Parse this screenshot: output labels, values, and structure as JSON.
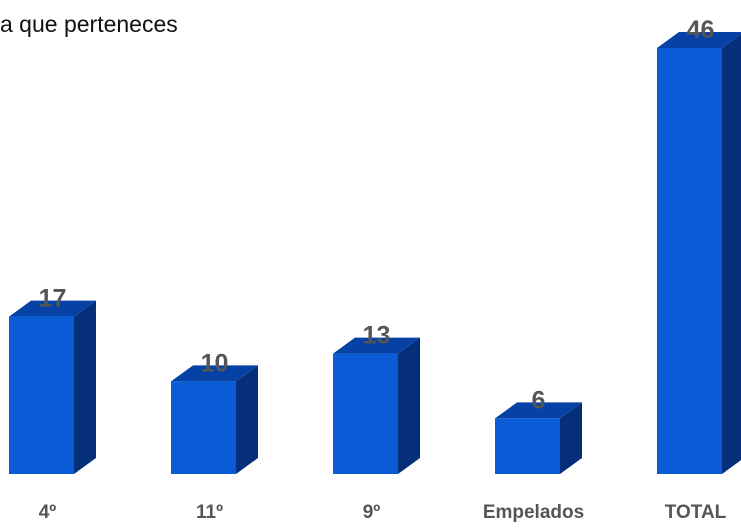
{
  "chart_data": {
    "type": "bar",
    "title_clipped": "¿A qué grupo perteneces?",
    "title_visible": "a que perteneces",
    "categories": [
      "4º",
      "11º",
      "9º",
      "Empelados",
      "TOTAL"
    ],
    "values": [
      17,
      10,
      13,
      6,
      46
    ],
    "ylim": [
      0,
      46
    ],
    "grid": false,
    "colors": {
      "front": "#0a5cd6",
      "top": "#0642a6",
      "side": "#052f78",
      "label": "#555555"
    }
  }
}
